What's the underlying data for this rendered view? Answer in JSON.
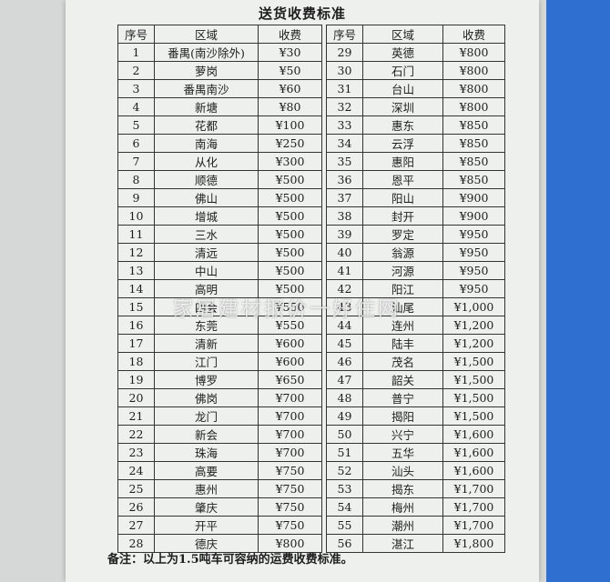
{
  "title": "送货收费标准",
  "tables": [
    {
      "columns": [
        "序号",
        "区域",
        "收费"
      ],
      "rows": [
        [
          "1",
          "番禺(南沙除外)",
          "¥30"
        ],
        [
          "2",
          "萝岗",
          "¥50"
        ],
        [
          "3",
          "番禺南沙",
          "¥60"
        ],
        [
          "4",
          "新塘",
          "¥80"
        ],
        [
          "5",
          "花都",
          "¥100"
        ],
        [
          "6",
          "南海",
          "¥250"
        ],
        [
          "7",
          "从化",
          "¥300"
        ],
        [
          "8",
          "顺德",
          "¥500"
        ],
        [
          "9",
          "佛山",
          "¥500"
        ],
        [
          "10",
          "增城",
          "¥500"
        ],
        [
          "11",
          "三水",
          "¥500"
        ],
        [
          "12",
          "清远",
          "¥500"
        ],
        [
          "13",
          "中山",
          "¥500"
        ],
        [
          "14",
          "高明",
          "¥500"
        ],
        [
          "15",
          "四会",
          "¥550"
        ],
        [
          "16",
          "东莞",
          "¥550"
        ],
        [
          "17",
          "清新",
          "¥600"
        ],
        [
          "18",
          "江门",
          "¥600"
        ],
        [
          "19",
          "博罗",
          "¥650"
        ],
        [
          "20",
          "佛岗",
          "¥700"
        ],
        [
          "21",
          "龙门",
          "¥700"
        ],
        [
          "22",
          "新会",
          "¥700"
        ],
        [
          "23",
          "珠海",
          "¥700"
        ],
        [
          "24",
          "高要",
          "¥750"
        ],
        [
          "25",
          "惠州",
          "¥750"
        ],
        [
          "26",
          "肇庆",
          "¥750"
        ],
        [
          "27",
          "开平",
          "¥750"
        ],
        [
          "28",
          "德庆",
          "¥800"
        ]
      ]
    },
    {
      "columns": [
        "序号",
        "区域",
        "收费"
      ],
      "rows": [
        [
          "29",
          "英德",
          "¥800"
        ],
        [
          "30",
          "石门",
          "¥800"
        ],
        [
          "31",
          "台山",
          "¥800"
        ],
        [
          "32",
          "深圳",
          "¥800"
        ],
        [
          "33",
          "惠东",
          "¥850"
        ],
        [
          "34",
          "云浮",
          "¥850"
        ],
        [
          "35",
          "惠阳",
          "¥850"
        ],
        [
          "36",
          "恩平",
          "¥850"
        ],
        [
          "37",
          "阳山",
          "¥900"
        ],
        [
          "38",
          "封开",
          "¥900"
        ],
        [
          "39",
          "罗定",
          "¥950"
        ],
        [
          "40",
          "翁源",
          "¥950"
        ],
        [
          "41",
          "河源",
          "¥950"
        ],
        [
          "42",
          "阳江",
          "¥950"
        ],
        [
          "43",
          "汕尾",
          "¥1,000"
        ],
        [
          "44",
          "连州",
          "¥1,200"
        ],
        [
          "45",
          "陆丰",
          "¥1,200"
        ],
        [
          "46",
          "茂名",
          "¥1,500"
        ],
        [
          "47",
          "韶关",
          "¥1,500"
        ],
        [
          "48",
          "普宁",
          "¥1,500"
        ],
        [
          "49",
          "揭阳",
          "¥1,500"
        ],
        [
          "50",
          "兴宁",
          "¥1,600"
        ],
        [
          "51",
          "五华",
          "¥1,600"
        ],
        [
          "52",
          "汕头",
          "¥1,600"
        ],
        [
          "53",
          "揭东",
          "¥1,700"
        ],
        [
          "54",
          "梅州",
          "¥1,700"
        ],
        [
          "55",
          "潮州",
          "¥1,700"
        ],
        [
          "56",
          "湛江",
          "¥1,800"
        ]
      ]
    }
  ],
  "note": "备注：以上为1.5吨车可容纳的运费收费标准。",
  "watermark": "家居建材报价一好住网"
}
